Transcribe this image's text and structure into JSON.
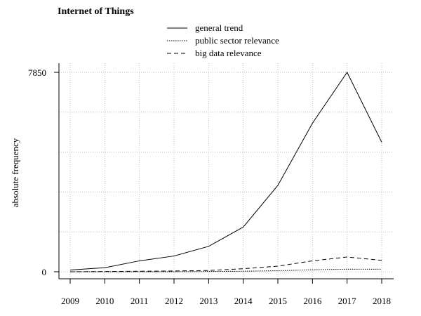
{
  "chart_data": {
    "type": "line",
    "title": "Internet of Things",
    "xlabel": "",
    "ylabel": "absolute frequency",
    "x": [
      2009,
      2010,
      2011,
      2012,
      2013,
      2014,
      2015,
      2016,
      2017,
      2018
    ],
    "x_tick_labels": [
      "2009",
      "2010",
      "2011",
      "2012",
      "2013",
      "2014",
      "2015",
      "2016",
      "2017",
      "2018"
    ],
    "y_tick_labels": [
      "0",
      "7850"
    ],
    "ylim": [
      0,
      7850
    ],
    "grid": true,
    "legend_position": "top-center",
    "series": [
      {
        "name": "general trend",
        "dash": "solid",
        "values": [
          70,
          160,
          430,
          620,
          1000,
          1760,
          3400,
          5850,
          7850,
          5100
        ]
      },
      {
        "name": "public sector relevance",
        "dash": "dotted",
        "values": [
          0,
          0,
          0,
          0,
          10,
          20,
          40,
          80,
          100,
          100
        ]
      },
      {
        "name": "big data relevance",
        "dash": "dashed",
        "values": [
          0,
          10,
          20,
          30,
          50,
          120,
          220,
          430,
          580,
          450
        ]
      }
    ]
  }
}
